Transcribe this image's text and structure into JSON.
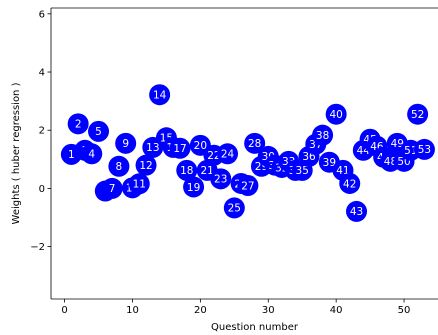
{
  "chart_data": {
    "type": "scatter",
    "title": "",
    "xlabel": "Question number",
    "ylabel": "Weights ( huber regression )",
    "xlim": [
      -2,
      55
    ],
    "ylim": [
      -3.8,
      6.2
    ],
    "xticks": [
      0,
      10,
      20,
      30,
      40,
      50
    ],
    "yticks": [
      -2,
      0,
      2,
      4,
      6
    ],
    "xtick_labels": [
      "0",
      "10",
      "20",
      "30",
      "40",
      "50"
    ],
    "ytick_labels": [
      "−2",
      "0",
      "2",
      "4",
      "6"
    ],
    "grid": false,
    "marker_color": "#0000ff",
    "label_color": "#ffffff",
    "points": [
      {
        "label": "1",
        "x": 1,
        "y": 1.17
      },
      {
        "label": "2",
        "x": 2,
        "y": 2.22
      },
      {
        "label": "3",
        "x": 3,
        "y": 1.31
      },
      {
        "label": "4",
        "x": 4,
        "y": 1.19
      },
      {
        "label": "5",
        "x": 5,
        "y": 1.96
      },
      {
        "label": "6",
        "x": 6,
        "y": -0.09
      },
      {
        "label": "7",
        "x": 7,
        "y": 0.0
      },
      {
        "label": "8",
        "x": 8,
        "y": 0.76
      },
      {
        "label": "9",
        "x": 9,
        "y": 1.55
      },
      {
        "label": "10",
        "x": 10,
        "y": 0.02
      },
      {
        "label": "11",
        "x": 11,
        "y": 0.16
      },
      {
        "label": "12",
        "x": 12,
        "y": 0.8
      },
      {
        "label": "13",
        "x": 13,
        "y": 1.41
      },
      {
        "label": "14",
        "x": 14,
        "y": 3.22
      },
      {
        "label": "15",
        "x": 15,
        "y": 1.74
      },
      {
        "label": "16",
        "x": 16,
        "y": 1.41
      },
      {
        "label": "17",
        "x": 17,
        "y": 1.38
      },
      {
        "label": "18",
        "x": 18,
        "y": 0.62
      },
      {
        "label": "19",
        "x": 19,
        "y": 0.05
      },
      {
        "label": "20",
        "x": 20,
        "y": 1.48
      },
      {
        "label": "21",
        "x": 21,
        "y": 0.62
      },
      {
        "label": "22",
        "x": 22,
        "y": 1.14
      },
      {
        "label": "23",
        "x": 23,
        "y": 0.33
      },
      {
        "label": "24",
        "x": 24,
        "y": 1.19
      },
      {
        "label": "25",
        "x": 25,
        "y": -0.67
      },
      {
        "label": "26",
        "x": 26,
        "y": 0.17
      },
      {
        "label": "27",
        "x": 27,
        "y": 0.1
      },
      {
        "label": "28",
        "x": 28,
        "y": 1.55
      },
      {
        "label": "29",
        "x": 29,
        "y": 0.76
      },
      {
        "label": "30",
        "x": 30,
        "y": 1.1
      },
      {
        "label": "31",
        "x": 31,
        "y": 0.8
      },
      {
        "label": "32",
        "x": 32,
        "y": 0.72
      },
      {
        "label": "33",
        "x": 33,
        "y": 0.93
      },
      {
        "label": "34",
        "x": 34,
        "y": 0.62
      },
      {
        "label": "35",
        "x": 35,
        "y": 0.62
      },
      {
        "label": "36",
        "x": 36,
        "y": 1.1
      },
      {
        "label": "37",
        "x": 37,
        "y": 1.52
      },
      {
        "label": "38",
        "x": 38,
        "y": 1.83
      },
      {
        "label": "39",
        "x": 39,
        "y": 0.9
      },
      {
        "label": "40",
        "x": 40,
        "y": 2.55
      },
      {
        "label": "41",
        "x": 41,
        "y": 0.62
      },
      {
        "label": "42",
        "x": 42,
        "y": 0.17
      },
      {
        "label": "43",
        "x": 43,
        "y": -0.79
      },
      {
        "label": "44",
        "x": 44,
        "y": 1.31
      },
      {
        "label": "45",
        "x": 45,
        "y": 1.69
      },
      {
        "label": "46",
        "x": 46,
        "y": 1.45
      },
      {
        "label": "47",
        "x": 47,
        "y": 1.07
      },
      {
        "label": "48",
        "x": 48,
        "y": 0.93
      },
      {
        "label": "49",
        "x": 49,
        "y": 1.55
      },
      {
        "label": "50",
        "x": 50,
        "y": 0.93
      },
      {
        "label": "51",
        "x": 51,
        "y": 1.31
      },
      {
        "label": "52",
        "x": 52,
        "y": 2.55
      },
      {
        "label": "53",
        "x": 53,
        "y": 1.34
      }
    ]
  }
}
